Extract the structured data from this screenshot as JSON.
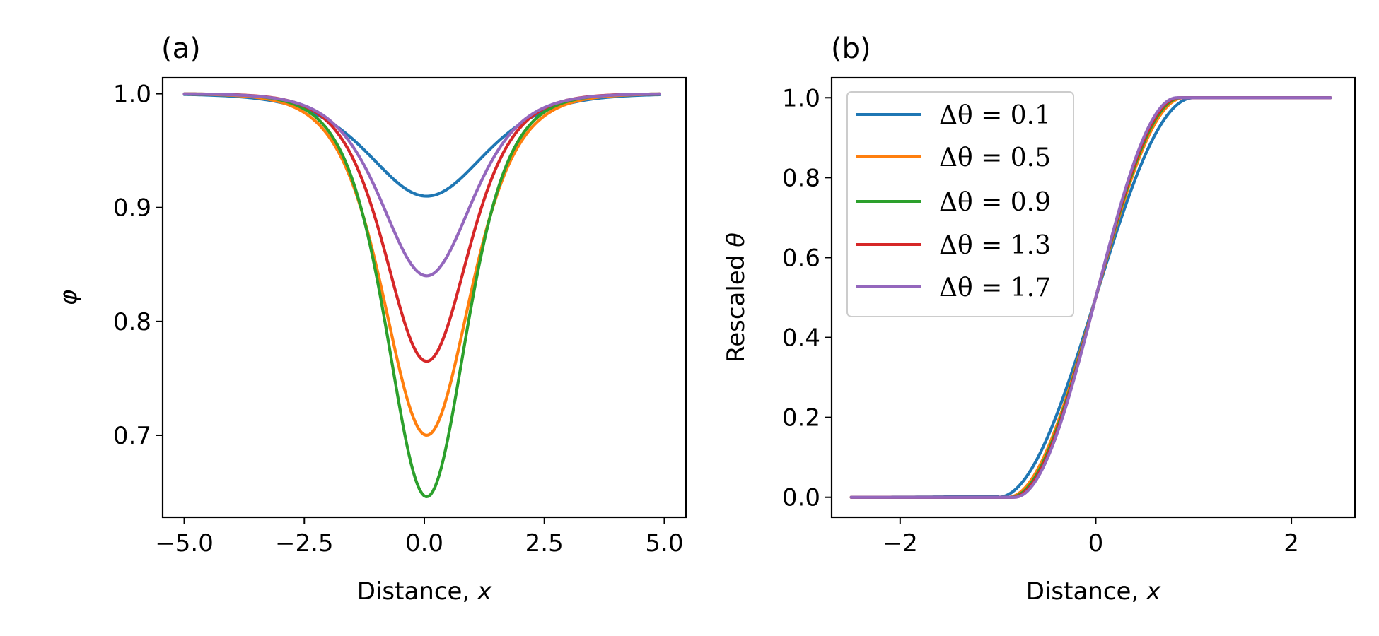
{
  "chart_data": [
    {
      "panel": "a",
      "title": "(a)",
      "type": "line",
      "xlabel_text": "Distance, ",
      "xlabel_var": "x",
      "ylabel": "φ",
      "xlim": [
        -5.45,
        5.45
      ],
      "ylim": [
        0.628,
        1.014
      ],
      "xticks": [
        -5.0,
        -2.5,
        0.0,
        2.5,
        5.0
      ],
      "xtick_labels": [
        "−5.0",
        "−2.5",
        "0.0",
        "2.5",
        "5.0"
      ],
      "yticks": [
        0.7,
        0.8,
        0.9,
        1.0
      ],
      "ytick_labels": [
        "0.7",
        "0.8",
        "0.9",
        "1.0"
      ],
      "x_range": [
        -5.0,
        4.9
      ],
      "series": [
        {
          "name": "Δθ = 0.1",
          "color": "#1f77b4",
          "min": 0.91,
          "width": 1.6
        },
        {
          "name": "Δθ = 0.5",
          "color": "#ff7f0e",
          "min": 0.7,
          "width": 1.2
        },
        {
          "name": "Δθ = 0.9",
          "color": "#2ca02c",
          "min": 0.646,
          "width": 1.1
        },
        {
          "name": "Δθ = 1.3",
          "color": "#d62728",
          "min": 0.765,
          "width": 1.15
        },
        {
          "name": "Δθ = 1.7",
          "color": "#9467bd",
          "min": 0.84,
          "width": 1.25
        }
      ]
    },
    {
      "panel": "b",
      "title": "(b)",
      "type": "line",
      "xlabel_text": "Distance, ",
      "xlabel_var": "x",
      "ylabel_text": "Rescaled ",
      "ylabel_var": "θ",
      "xlim": [
        -2.7,
        2.65
      ],
      "ylim": [
        -0.05,
        1.05
      ],
      "xticks": [
        -2,
        0,
        2
      ],
      "xtick_labels": [
        "−2",
        "0",
        "2"
      ],
      "yticks": [
        0.0,
        0.2,
        0.4,
        0.6,
        0.8,
        1.0
      ],
      "ytick_labels": [
        "0.0",
        "0.2",
        "0.4",
        "0.6",
        "0.8",
        "1.0"
      ],
      "x_range": [
        -2.5,
        2.4
      ],
      "series": [
        {
          "name": "Δθ = 0.1",
          "color": "#1f77b4",
          "transition_halfwidth": 1.0
        },
        {
          "name": "Δθ = 0.5",
          "color": "#ff7f0e",
          "transition_halfwidth": 0.9
        },
        {
          "name": "Δθ = 0.9",
          "color": "#2ca02c",
          "transition_halfwidth": 0.87
        },
        {
          "name": "Δθ = 1.3",
          "color": "#d62728",
          "transition_halfwidth": 0.85
        },
        {
          "name": "Δθ = 1.7",
          "color": "#9467bd",
          "transition_halfwidth": 0.83
        }
      ],
      "legend": {
        "placement": "upper-left",
        "entries": [
          {
            "symbol": "Δθ",
            "rel": " = ",
            "value": "0.1",
            "color": "#1f77b4"
          },
          {
            "symbol": "Δθ",
            "rel": " = ",
            "value": "0.5",
            "color": "#ff7f0e"
          },
          {
            "symbol": "Δθ",
            "rel": " = ",
            "value": "0.9",
            "color": "#2ca02c"
          },
          {
            "symbol": "Δθ",
            "rel": " = ",
            "value": "1.3",
            "color": "#d62728"
          },
          {
            "symbol": "Δθ",
            "rel": " = ",
            "value": "1.7",
            "color": "#9467bd"
          }
        ]
      }
    }
  ]
}
